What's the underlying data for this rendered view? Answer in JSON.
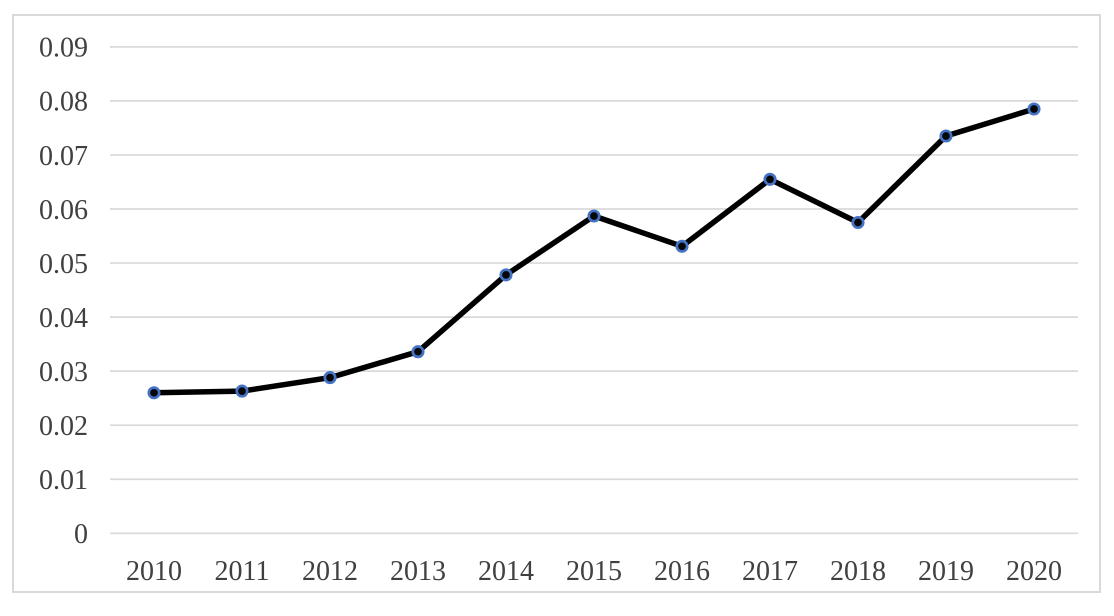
{
  "chart_data": {
    "type": "line",
    "title": "",
    "xlabel": "",
    "ylabel": "",
    "categories": [
      "2010",
      "2011",
      "2012",
      "2013",
      "2014",
      "2015",
      "2016",
      "2017",
      "2018",
      "2019",
      "2020"
    ],
    "series": [
      {
        "name": "series-1",
        "values": [
          0.026,
          0.0263,
          0.0288,
          0.0336,
          0.0478,
          0.0587,
          0.0531,
          0.0655,
          0.0575,
          0.0735,
          0.0785
        ]
      }
    ],
    "ylim": [
      0,
      0.09
    ],
    "y_tick_step": 0.01,
    "y_tick_labels": [
      "0",
      "0.01",
      "0.02",
      "0.03",
      "0.04",
      "0.05",
      "0.06",
      "0.07",
      "0.08",
      "0.09"
    ],
    "grid": true,
    "legend": false,
    "colors": {
      "line": "#000000",
      "marker_fill": "#070707",
      "marker_ring": "#4472c4",
      "gridline": "#d9d9d9",
      "frame": "#d9d9d9",
      "tick_text": "#404040",
      "background": "#ffffff"
    }
  }
}
